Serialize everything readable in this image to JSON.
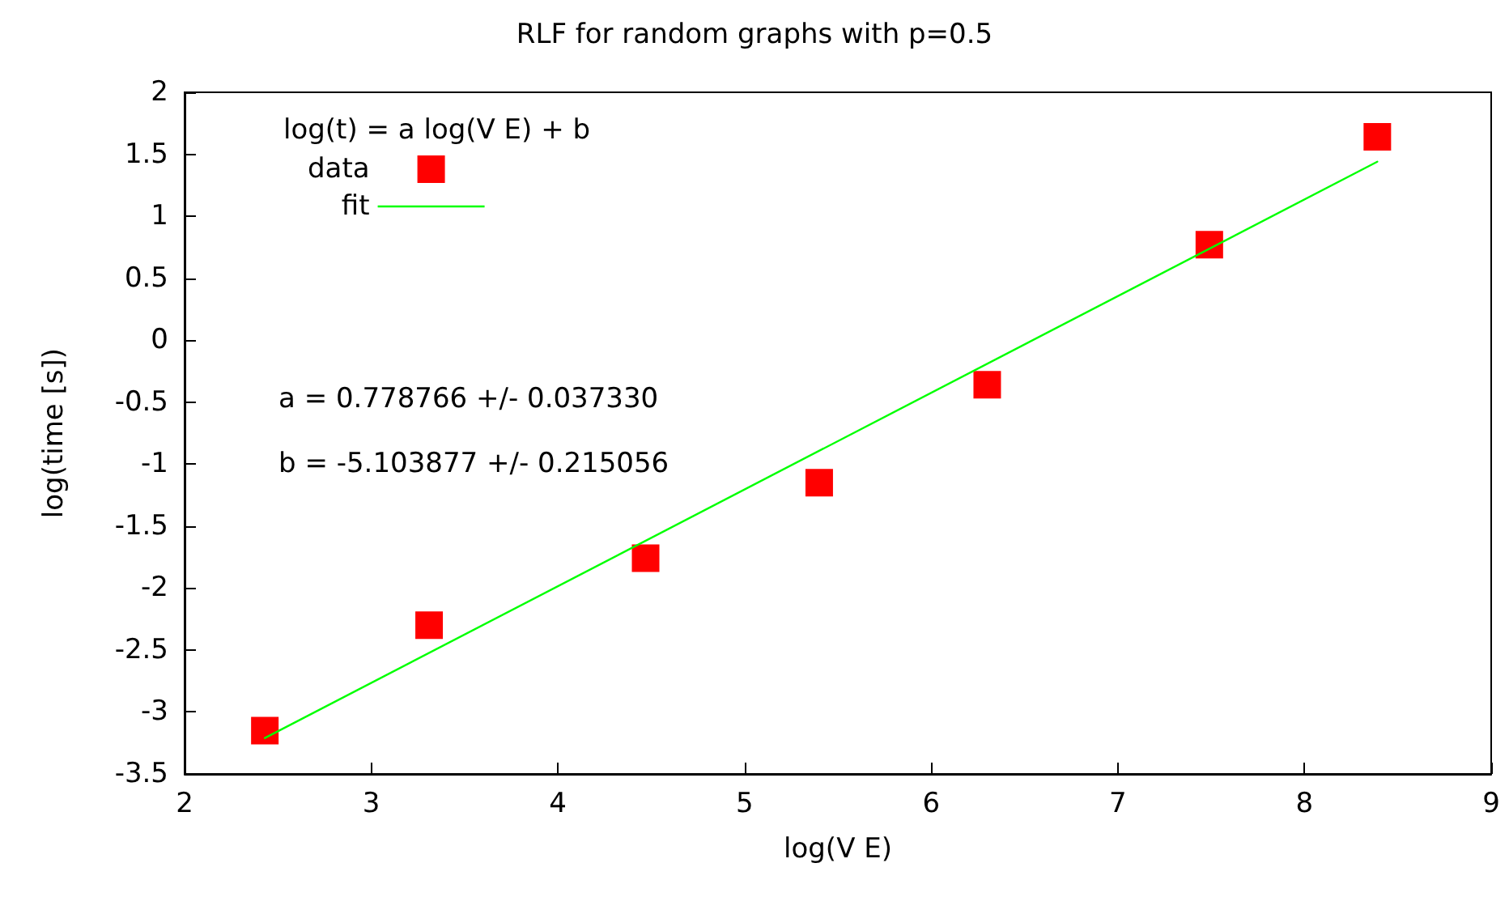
{
  "chart_data": {
    "type": "scatter",
    "title": "RLF for random graphs with p=0.5",
    "xlabel": "log(V E)",
    "ylabel": "log(time [s])",
    "legend_title": "log(t) = a log(V E) + b",
    "annotations": [
      "a = 0.778766 +/- 0.037330",
      "b = -5.103877 +/- 0.215056"
    ],
    "x": [
      2.43,
      3.31,
      4.47,
      5.4,
      6.3,
      7.49,
      8.39
    ],
    "series": [
      {
        "name": "data",
        "color": "#ff0000",
        "marker": "square",
        "values": [
          -3.15,
          -2.3,
          -1.76,
          -1.15,
          -0.36,
          0.77,
          1.64
        ]
      },
      {
        "name": "fit",
        "type": "line",
        "color": "#00ff00",
        "marker": "none",
        "x": [
          2.43,
          8.39
        ],
        "values": [
          -3.21,
          1.44
        ]
      }
    ],
    "xlim": [
      2,
      9
    ],
    "xticks": [
      2,
      3,
      4,
      5,
      6,
      7,
      8,
      9
    ],
    "ylim": [
      -3.5,
      2
    ],
    "yticks": [
      -3.5,
      -3,
      -2.5,
      -2,
      -1.5,
      -1,
      -0.5,
      0,
      0.5,
      1,
      1.5,
      2
    ],
    "grid": false,
    "legend": "top left",
    "line_style": "solid"
  }
}
